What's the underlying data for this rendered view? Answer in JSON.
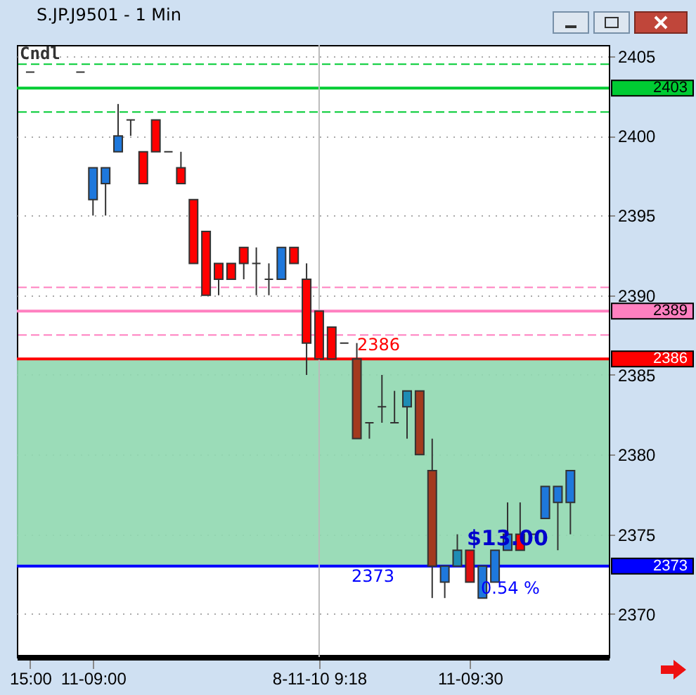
{
  "chart_data": {
    "type": "candlestick",
    "title": "S.JP.J9501 - 1 Min",
    "categories": [
      "15:00",
      null,
      null,
      null,
      null,
      "11-09:00",
      null,
      null,
      null,
      null,
      null,
      null,
      null,
      null,
      null,
      null,
      null,
      null,
      null,
      null,
      null,
      null,
      null,
      "8-11-10  9:18",
      null,
      null,
      null,
      null,
      null,
      null,
      null,
      null,
      null,
      null,
      null,
      "11-09:30",
      null,
      null,
      null,
      null,
      null,
      null,
      null,
      null,
      null,
      null
    ],
    "ohlc": [
      [
        2404,
        2404,
        2404,
        2404
      ],
      null,
      null,
      null,
      [
        2404,
        2404,
        2404,
        2404
      ],
      [
        2396,
        2398,
        2395,
        2398
      ],
      [
        2397,
        2398,
        2395,
        2398
      ],
      [
        2399,
        2402,
        2399,
        2400
      ],
      [
        2401,
        2401,
        2400,
        2401
      ],
      [
        2399,
        2399,
        2397,
        2397
      ],
      [
        2401,
        2401,
        2399,
        2399
      ],
      [
        2399,
        2399,
        2399,
        2399
      ],
      [
        2398,
        2399,
        2397,
        2397
      ],
      [
        2396,
        2396,
        2392,
        2392
      ],
      [
        2394,
        2394,
        2390,
        2390
      ],
      [
        2392,
        2392,
        2390,
        2391
      ],
      [
        2392,
        2392,
        2391,
        2391
      ],
      [
        2393,
        2393,
        2391,
        2392
      ],
      [
        2392,
        2393,
        2390,
        2392
      ],
      [
        2391,
        2392,
        2390,
        2391
      ],
      [
        2391,
        2393,
        2391,
        2393
      ],
      [
        2393,
        2393,
        2392,
        2392
      ],
      [
        2391,
        2392,
        2385,
        2387
      ],
      [
        2389,
        2389,
        2386,
        2386
      ],
      [
        2388,
        2388,
        2386,
        2386
      ],
      [
        2387,
        2387,
        2387,
        2387
      ],
      [
        2386,
        2387,
        2381,
        2381
      ],
      [
        2382,
        2382,
        2381,
        2382
      ],
      [
        2383,
        2385,
        2382,
        2383
      ],
      [
        2382,
        2384,
        2382,
        2382
      ],
      [
        2383,
        2384,
        2381,
        2384
      ],
      [
        2384,
        2384,
        2380,
        2380
      ],
      [
        2379,
        2381,
        2371,
        2373
      ],
      [
        2372,
        2373,
        2371,
        2373
      ],
      [
        2373,
        2375,
        2373,
        2374
      ],
      [
        2374,
        2374,
        2372,
        2372
      ],
      [
        2371,
        2373,
        2371,
        2373
      ],
      [
        2372,
        2374,
        2372,
        2374
      ],
      [
        2374,
        2377,
        2374,
        2375
      ],
      [
        2375,
        2377,
        2374,
        2374
      ],
      [
        2375,
        2375,
        2375,
        2375
      ],
      [
        2376,
        2378,
        2376,
        2378
      ],
      [
        2377,
        2378,
        2374,
        2378
      ],
      [
        2377,
        2379,
        2375,
        2379
      ],
      null,
      null
    ],
    "colors": [
      "#333333",
      null,
      null,
      null,
      "#333333",
      "#1e78dc",
      "#1e78dc",
      "#1e78dc",
      "#333333",
      "#ff0000",
      "#ff0000",
      "#333333",
      "#ff0000",
      "#ff0000",
      "#ff0000",
      "#ff0000",
      "#ff0000",
      "#ff0000",
      "#333333",
      "#333333",
      "#1e78dc",
      "#ff0000",
      "#ff0000",
      "#ff0000",
      "#ff0000",
      "#333333",
      "#a33a1e",
      "#333333",
      "#333333",
      "#333333",
      "#1e8cb4",
      "#a33a1e",
      "#a33a1e",
      "#1e78dc",
      "#1e8cb4",
      "#e01010",
      "#1e78dc",
      "#1e78dc",
      "#1e78dc",
      "#ff0000",
      "#333333",
      "#1e78dc",
      "#1e78dc",
      "#1e78dc",
      null,
      null
    ],
    "ylim": [
      2367.3,
      2405.7
    ],
    "yticks": [
      2370,
      2375,
      2380,
      2385,
      2390,
      2395,
      2400,
      2405
    ],
    "grid": true,
    "ref_lines": [
      {
        "axis": "y",
        "value": 2404.5,
        "color": "#00cc33",
        "line_style": "dashed"
      },
      {
        "axis": "y",
        "value": 2403,
        "label": "2403",
        "color": "#00cc33",
        "line_style": "solid"
      },
      {
        "axis": "y",
        "value": 2401.5,
        "color": "#00cc33",
        "line_style": "dashed"
      },
      {
        "axis": "y",
        "value": 2390.5,
        "color": "#ff80c0",
        "line_style": "dashed"
      },
      {
        "axis": "y",
        "value": 2389,
        "label": "2389",
        "color": "#ff80c0",
        "line_style": "solid"
      },
      {
        "axis": "y",
        "value": 2387.5,
        "color": "#ff80c0",
        "line_style": "dashed"
      },
      {
        "axis": "y",
        "value": 2386,
        "label": "2386",
        "color": "#ff0000",
        "line_style": "solid"
      },
      {
        "axis": "y",
        "value": 2373,
        "label": "2373",
        "color": "#0000ff",
        "line_style": "solid"
      },
      {
        "axis": "x",
        "value": "8-11-10  9:18",
        "color": "#bbbbbb",
        "line_style": "solid"
      }
    ],
    "bands": [
      {
        "axis": "y",
        "from": 2373,
        "to": 2386,
        "color": "#90d8b0"
      }
    ],
    "annotations": [
      "Cndl",
      {
        "text": "2386",
        "y": 2386
      },
      {
        "text": "2373",
        "y": 2373
      },
      {
        "text": "$13.00",
        "y": 2373.8
      },
      "0.54 %"
    ]
  }
}
